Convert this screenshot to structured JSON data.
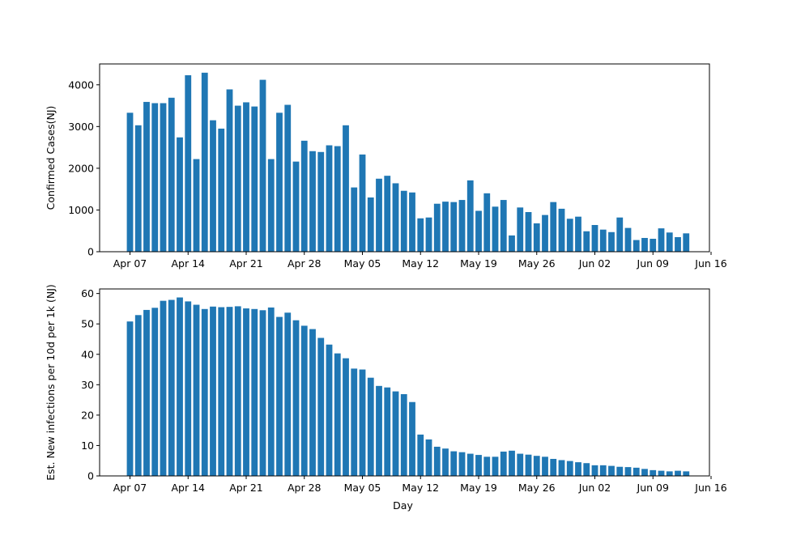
{
  "chart_data": [
    {
      "type": "bar",
      "x_start_date": "Apr 07",
      "ylabel": "Confirmed Cases(NJ)",
      "xlabel": "",
      "ylim": [
        0,
        4500
      ],
      "yticks": [
        0,
        1000,
        2000,
        3000,
        4000
      ],
      "xticks": [
        "Apr 07",
        "Apr 14",
        "Apr 21",
        "Apr 28",
        "May 05",
        "May 12",
        "May 19",
        "May 26",
        "Jun 02",
        "Jun 09",
        "Jun 16"
      ],
      "color": "#1f77b4",
      "values": [
        3330,
        3030,
        3590,
        3560,
        3560,
        3690,
        2740,
        4230,
        2220,
        4290,
        3150,
        2950,
        3890,
        3500,
        3580,
        3480,
        4120,
        2220,
        3330,
        3520,
        2160,
        2660,
        2410,
        2390,
        2550,
        2530,
        3030,
        1540,
        2330,
        1300,
        1750,
        1820,
        1640,
        1460,
        1420,
        800,
        820,
        1150,
        1200,
        1190,
        1240,
        1710,
        980,
        1400,
        1080,
        1240,
        390,
        1060,
        950,
        680,
        880,
        1190,
        1030,
        790,
        840,
        490,
        640,
        530,
        470,
        820,
        570,
        280,
        330,
        310,
        560,
        460,
        350,
        440
      ]
    },
    {
      "type": "bar",
      "x_start_date": "Apr 07",
      "ylabel": "Est. New infections per 10d per 1k (NJ)",
      "xlabel": "Day",
      "ylim": [
        0,
        61.5
      ],
      "yticks": [
        0,
        10,
        20,
        30,
        40,
        50,
        60
      ],
      "xticks": [
        "Apr 07",
        "Apr 14",
        "Apr 21",
        "Apr 28",
        "May 05",
        "May 12",
        "May 19",
        "May 26",
        "Jun 02",
        "Jun 09",
        "Jun 16"
      ],
      "color": "#1f77b4",
      "values": [
        50.8,
        52.9,
        54.6,
        55.3,
        57.6,
        57.9,
        58.7,
        57.4,
        56.3,
        54.9,
        55.7,
        55.5,
        55.6,
        55.8,
        55.1,
        54.9,
        54.5,
        55.4,
        52.3,
        53.7,
        51.2,
        49.4,
        48.3,
        45.4,
        43.2,
        40.3,
        38.7,
        35.3,
        35.0,
        32.3,
        29.6,
        29.1,
        27.8,
        26.9,
        24.3,
        13.6,
        12.0,
        9.6,
        9.0,
        8.1,
        7.8,
        7.3,
        6.9,
        6.3,
        6.3,
        8.0,
        8.3,
        7.3,
        7.0,
        6.6,
        6.3,
        5.6,
        5.2,
        4.9,
        4.5,
        4.2,
        3.5,
        3.5,
        3.3,
        3.0,
        2.9,
        2.7,
        2.3,
        1.9,
        1.7,
        1.5,
        1.7,
        1.5
      ]
    }
  ]
}
